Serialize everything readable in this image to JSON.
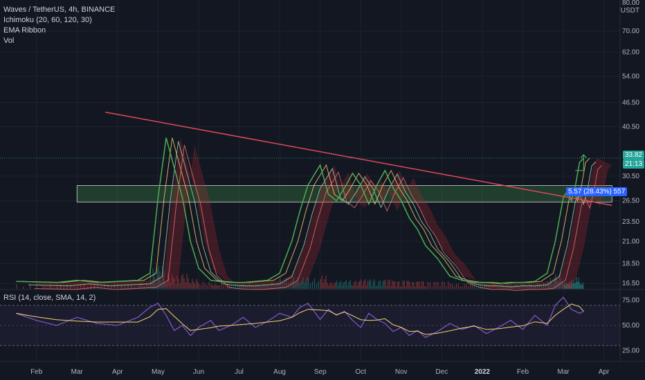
{
  "chart_data": [
    {
      "type": "line",
      "title": "Waves / TetherUS, 4h, BINANCE",
      "legend": [
        "Ichimoku (20, 60, 120, 30)",
        "EMA Ribbon",
        "Vol"
      ],
      "currency": "USDT",
      "currency_prefix": "80.00",
      "x_ticks": [
        {
          "label": "Feb",
          "t": 0.5
        },
        {
          "label": "Mar",
          "t": 1.5
        },
        {
          "label": "Apr",
          "t": 2.5
        },
        {
          "label": "May",
          "t": 3.5
        },
        {
          "label": "Jun",
          "t": 4.5
        },
        {
          "label": "Jul",
          "t": 5.5
        },
        {
          "label": "Aug",
          "t": 6.5
        },
        {
          "label": "Sep",
          "t": 7.5
        },
        {
          "label": "Oct",
          "t": 8.5
        },
        {
          "label": "Nov",
          "t": 9.5
        },
        {
          "label": "Dec",
          "t": 10.5
        },
        {
          "label": "2022",
          "t": 11.5
        },
        {
          "label": "Feb",
          "t": 12.5
        },
        {
          "label": "Mar",
          "t": 13.5
        },
        {
          "label": "Apr",
          "t": 14.5
        }
      ],
      "y_ticks": [
        "70.00",
        "62.00",
        "54.00",
        "46.50",
        "40.50",
        "30.50",
        "26.50",
        "23.50",
        "21.00",
        "18.50",
        "16.50"
      ],
      "y_scale": "log",
      "ylim": [
        16.0,
        82.0
      ],
      "price_series": {
        "name": "WAVESUSDT",
        "t": [
          0,
          1,
          1.5,
          2,
          2.5,
          3,
          3.3,
          3.5,
          3.7,
          3.9,
          4.1,
          4.3,
          4.5,
          4.8,
          5.0,
          5.3,
          5.6,
          5.9,
          6.2,
          6.5,
          6.8,
          7.0,
          7.2,
          7.5,
          7.7,
          7.9,
          8.1,
          8.3,
          8.5,
          8.7,
          8.9,
          9.1,
          9.3,
          9.5,
          9.7,
          9.9,
          10.1,
          10.4,
          10.7,
          11.0,
          11.3,
          11.6,
          11.9,
          12.2,
          12.5,
          12.8,
          13.1,
          13.3,
          13.5,
          13.6,
          13.7,
          13.8,
          13.9,
          14.0
        ],
        "price": [
          16.7,
          16.6,
          16.8,
          16.6,
          16.7,
          16.8,
          17.5,
          27.0,
          38.0,
          32.0,
          27.0,
          21.0,
          18.0,
          16.8,
          16.7,
          16.6,
          16.6,
          16.7,
          16.8,
          17.5,
          21.0,
          25.0,
          29.0,
          32.5,
          27.5,
          26.5,
          28.5,
          31.0,
          29.0,
          26.0,
          29.0,
          31.5,
          28.5,
          26.5,
          24.0,
          22.5,
          20.5,
          19.0,
          17.2,
          16.8,
          16.6,
          16.6,
          16.5,
          16.6,
          16.6,
          16.7,
          17.5,
          21.0,
          27.0,
          28.0,
          26.5,
          29.0,
          33.0,
          33.8
        ]
      },
      "trendline": {
        "t": [
          2.2,
          14.7
        ],
        "price": [
          44.0,
          25.8
        ]
      },
      "zone": {
        "t": [
          1.5,
          14.7
        ],
        "price_low": 26.3,
        "price_high": 28.9
      },
      "measure_label": "5.57 (28.43%) 557",
      "current_price": "33.82",
      "countdown": "21:13"
    },
    {
      "type": "line",
      "title": "RSI (14, close, SMA, 14, 2)",
      "y_ticks": [
        "75.00",
        "50.00",
        "25.00"
      ],
      "ylim": [
        15,
        85
      ],
      "bands": [
        70,
        30
      ],
      "rsi_t": [
        0,
        0.5,
        1,
        1.5,
        2,
        2.5,
        3,
        3.3,
        3.5,
        3.7,
        3.9,
        4.1,
        4.3,
        4.5,
        4.8,
        5.0,
        5.3,
        5.6,
        5.9,
        6.2,
        6.5,
        6.8,
        7.0,
        7.2,
        7.5,
        7.7,
        7.9,
        8.1,
        8.3,
        8.5,
        8.7,
        8.9,
        9.1,
        9.3,
        9.5,
        9.7,
        9.9,
        10.1,
        10.4,
        10.7,
        11.0,
        11.3,
        11.6,
        11.9,
        12.2,
        12.5,
        12.8,
        13.1,
        13.3,
        13.5,
        13.7,
        13.9,
        14.0
      ],
      "rsi_val": [
        62,
        55,
        50,
        58,
        52,
        50,
        58,
        68,
        72,
        60,
        45,
        50,
        40,
        48,
        55,
        45,
        50,
        58,
        48,
        54,
        62,
        58,
        68,
        72,
        56,
        66,
        60,
        64,
        55,
        48,
        62,
        56,
        52,
        44,
        48,
        40,
        45,
        38,
        44,
        52,
        46,
        50,
        42,
        48,
        55,
        46,
        60,
        50,
        70,
        78,
        66,
        62,
        64
      ]
    }
  ]
}
